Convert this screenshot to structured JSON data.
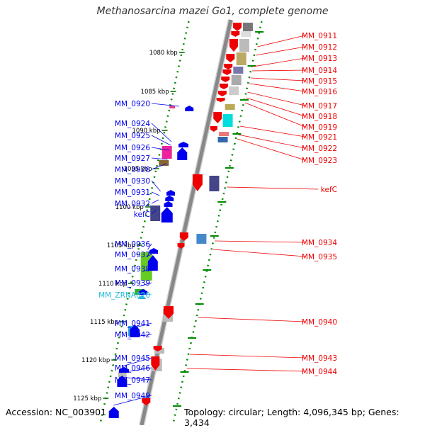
{
  "title": "Methanosarcina mazei Go1, complete genome",
  "accession": "Accession: NC_003901",
  "summary": "Topology: circular; Length: 4,096,345 bp; Genes: 3,434",
  "colors": {
    "forward": "#0000ee",
    "reverse": "#ee0000",
    "rna": "#22bbdd",
    "backbone": "#888888",
    "ticks": "#008800"
  },
  "kbp_ticks": [
    {
      "label": "1080 kbp"
    },
    {
      "label": "1085 kbp"
    },
    {
      "label": "1090 kbp"
    },
    {
      "label": "1095 kbp"
    },
    {
      "label": "1100 kbp"
    },
    {
      "label": "1105 kbp"
    },
    {
      "label": "1110 kbp"
    },
    {
      "label": "1115 kbp"
    },
    {
      "label": "1120 kbp"
    },
    {
      "label": "1125 kbp"
    }
  ],
  "forward_genes": [
    "MM_0920",
    "MM_0924",
    "MM_0925",
    "MM_0926",
    "MM_0927",
    "MM_0928",
    "MM_0930",
    "MM_0931",
    "MM_0932",
    "kefC",
    "MM_0936",
    "MM_0937",
    "MM_0938",
    "MM_0939",
    "MM_ZRNA020",
    "MM_0941",
    "MM_0942",
    "MM_0945",
    "MM_0946",
    "MM_0947",
    "MM_0949"
  ],
  "reverse_genes": [
    "MM_0911",
    "MM_0912",
    "MM_0913",
    "MM_0914",
    "MM_0915",
    "MM_0916",
    "MM_0917",
    "MM_0918",
    "MM_0919",
    "MM_0921",
    "MM_0922",
    "MM_0923",
    "kefC",
    "MM_0934",
    "MM_0935",
    "MM_0940",
    "MM_0943",
    "MM_0944"
  ]
}
